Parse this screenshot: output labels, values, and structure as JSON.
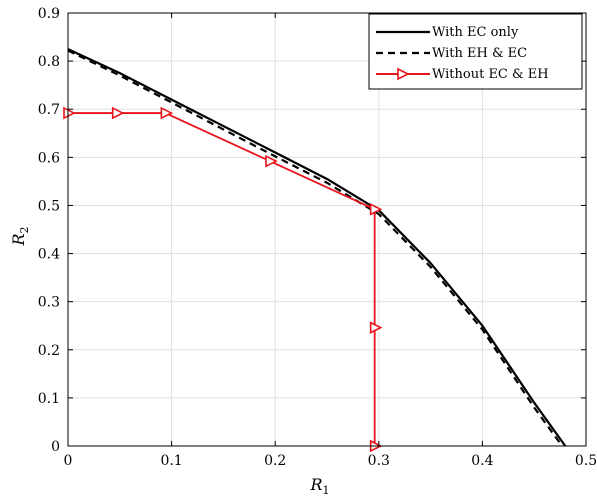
{
  "chart_data": {
    "type": "line",
    "xlabel": "R",
    "xlabel_sub": "1",
    "ylabel": "R",
    "ylabel_sub": "2",
    "xlim": [
      0,
      0.5
    ],
    "ylim": [
      0,
      0.9
    ],
    "xticks": [
      "0",
      "0.1",
      "0.2",
      "0.3",
      "0.4",
      "0.5"
    ],
    "yticks": [
      "0",
      "0.1",
      "0.2",
      "0.3",
      "0.4",
      "0.5",
      "0.6",
      "0.7",
      "0.8",
      "0.9"
    ],
    "grid": true,
    "legend_position": "top-right",
    "series": [
      {
        "name": "With EC only",
        "style": "solid",
        "color": "#000000",
        "x": [
          0,
          0.05,
          0.1,
          0.15,
          0.2,
          0.25,
          0.3,
          0.35,
          0.4,
          0.45,
          0.48
        ],
        "y": [
          0.825,
          0.775,
          0.72,
          0.665,
          0.61,
          0.555,
          0.49,
          0.38,
          0.25,
          0.09,
          0
        ]
      },
      {
        "name": "With EH & EC",
        "style": "dashed",
        "color": "#000000",
        "x": [
          0,
          0.05,
          0.1,
          0.15,
          0.2,
          0.25,
          0.3,
          0.35,
          0.4,
          0.45,
          0.477
        ],
        "y": [
          0.822,
          0.77,
          0.714,
          0.658,
          0.602,
          0.547,
          0.482,
          0.372,
          0.242,
          0.08,
          0
        ]
      },
      {
        "name": "Without EC & EH",
        "style": "solid-marker",
        "color": "#e8141b",
        "marker": "triangle-right",
        "x": [
          0,
          0.047,
          0.094,
          0.195,
          0.296,
          0.296,
          0.296
        ],
        "y": [
          0.692,
          0.692,
          0.692,
          0.592,
          0.492,
          0.246,
          0
        ]
      }
    ]
  }
}
